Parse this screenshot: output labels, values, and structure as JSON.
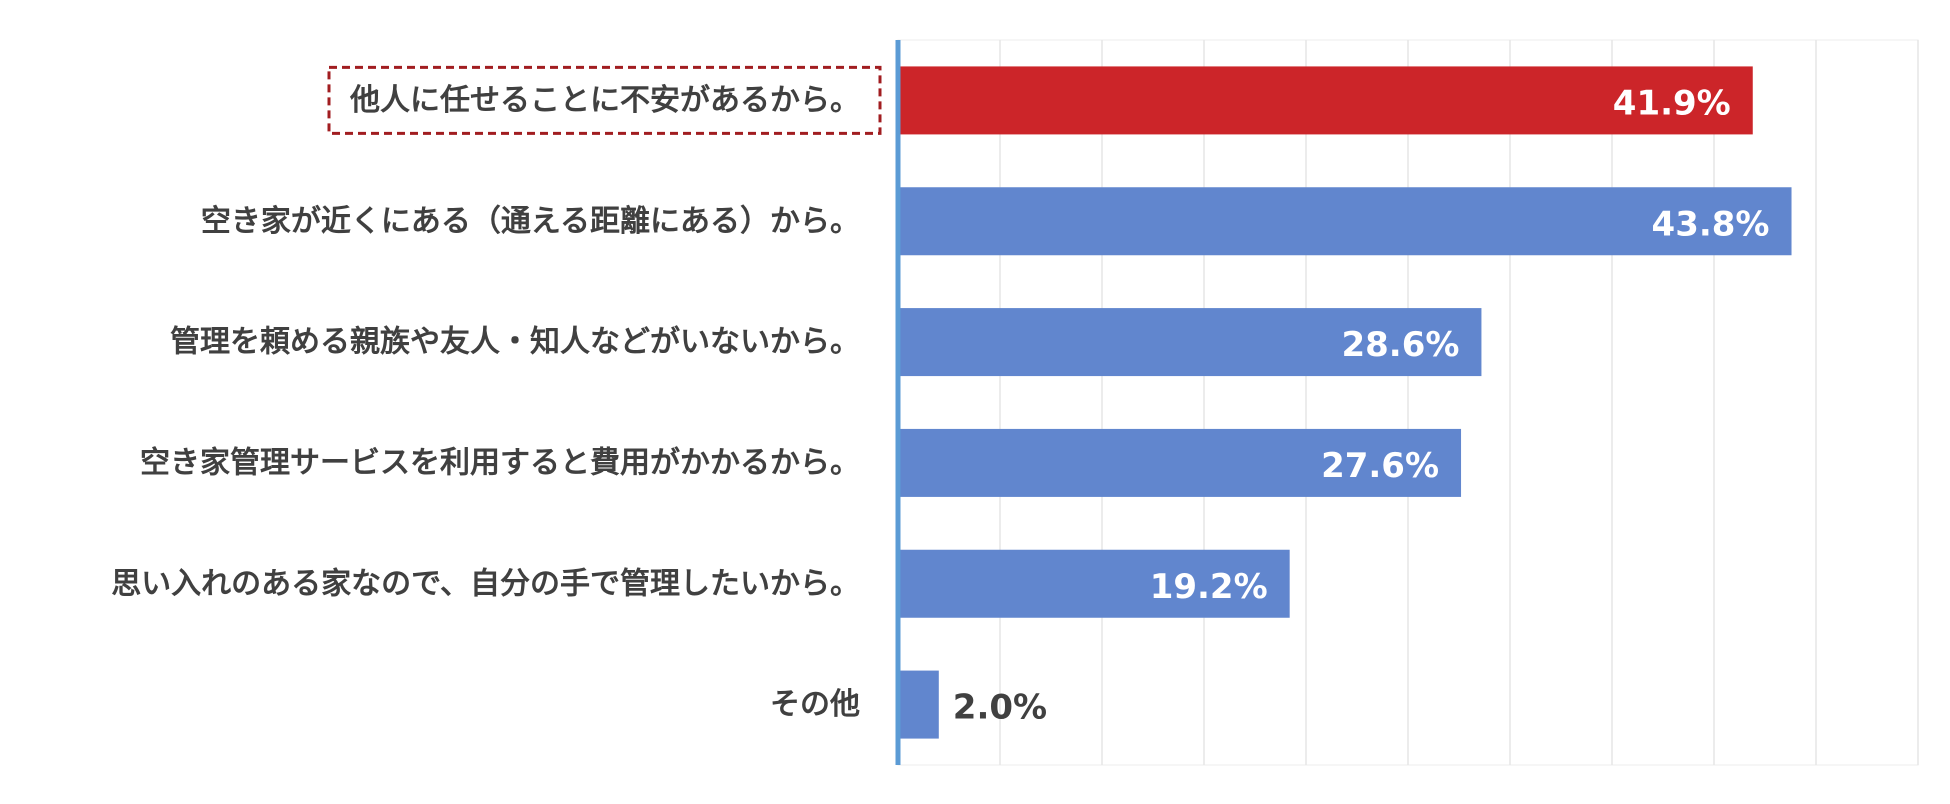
{
  "chart_data": {
    "type": "bar",
    "orientation": "horizontal",
    "categories": [
      "他人に任せることに不安があるから。",
      "空き家が近くにある（通える距離にある）から。",
      "管理を頼める親族や友人・知人などがいないから。",
      "空き家管理サービスを利用すると費用がかかるから。",
      "思い入れのある家なので、自分の手で管理したいから。",
      "その他"
    ],
    "values": [
      41.9,
      43.8,
      28.6,
      27.6,
      19.2,
      2.0
    ],
    "value_labels": [
      "41.9%",
      "43.8%",
      "28.6%",
      "27.6%",
      "19.2%",
      "2.0%"
    ],
    "highlight_index": 0,
    "xlim": [
      0,
      50
    ],
    "grid": true,
    "legend": "none",
    "title": "",
    "xlabel": "",
    "ylabel": "",
    "colors": {
      "highlight": "#CC2529",
      "bar": "#6186CE",
      "axis": "#5B9BD5",
      "grid": "#E6E6E6",
      "label": "#404040",
      "value_inside": "#FFFFFF",
      "value_outside": "#404040",
      "highlight_box": "#A11D20"
    }
  }
}
